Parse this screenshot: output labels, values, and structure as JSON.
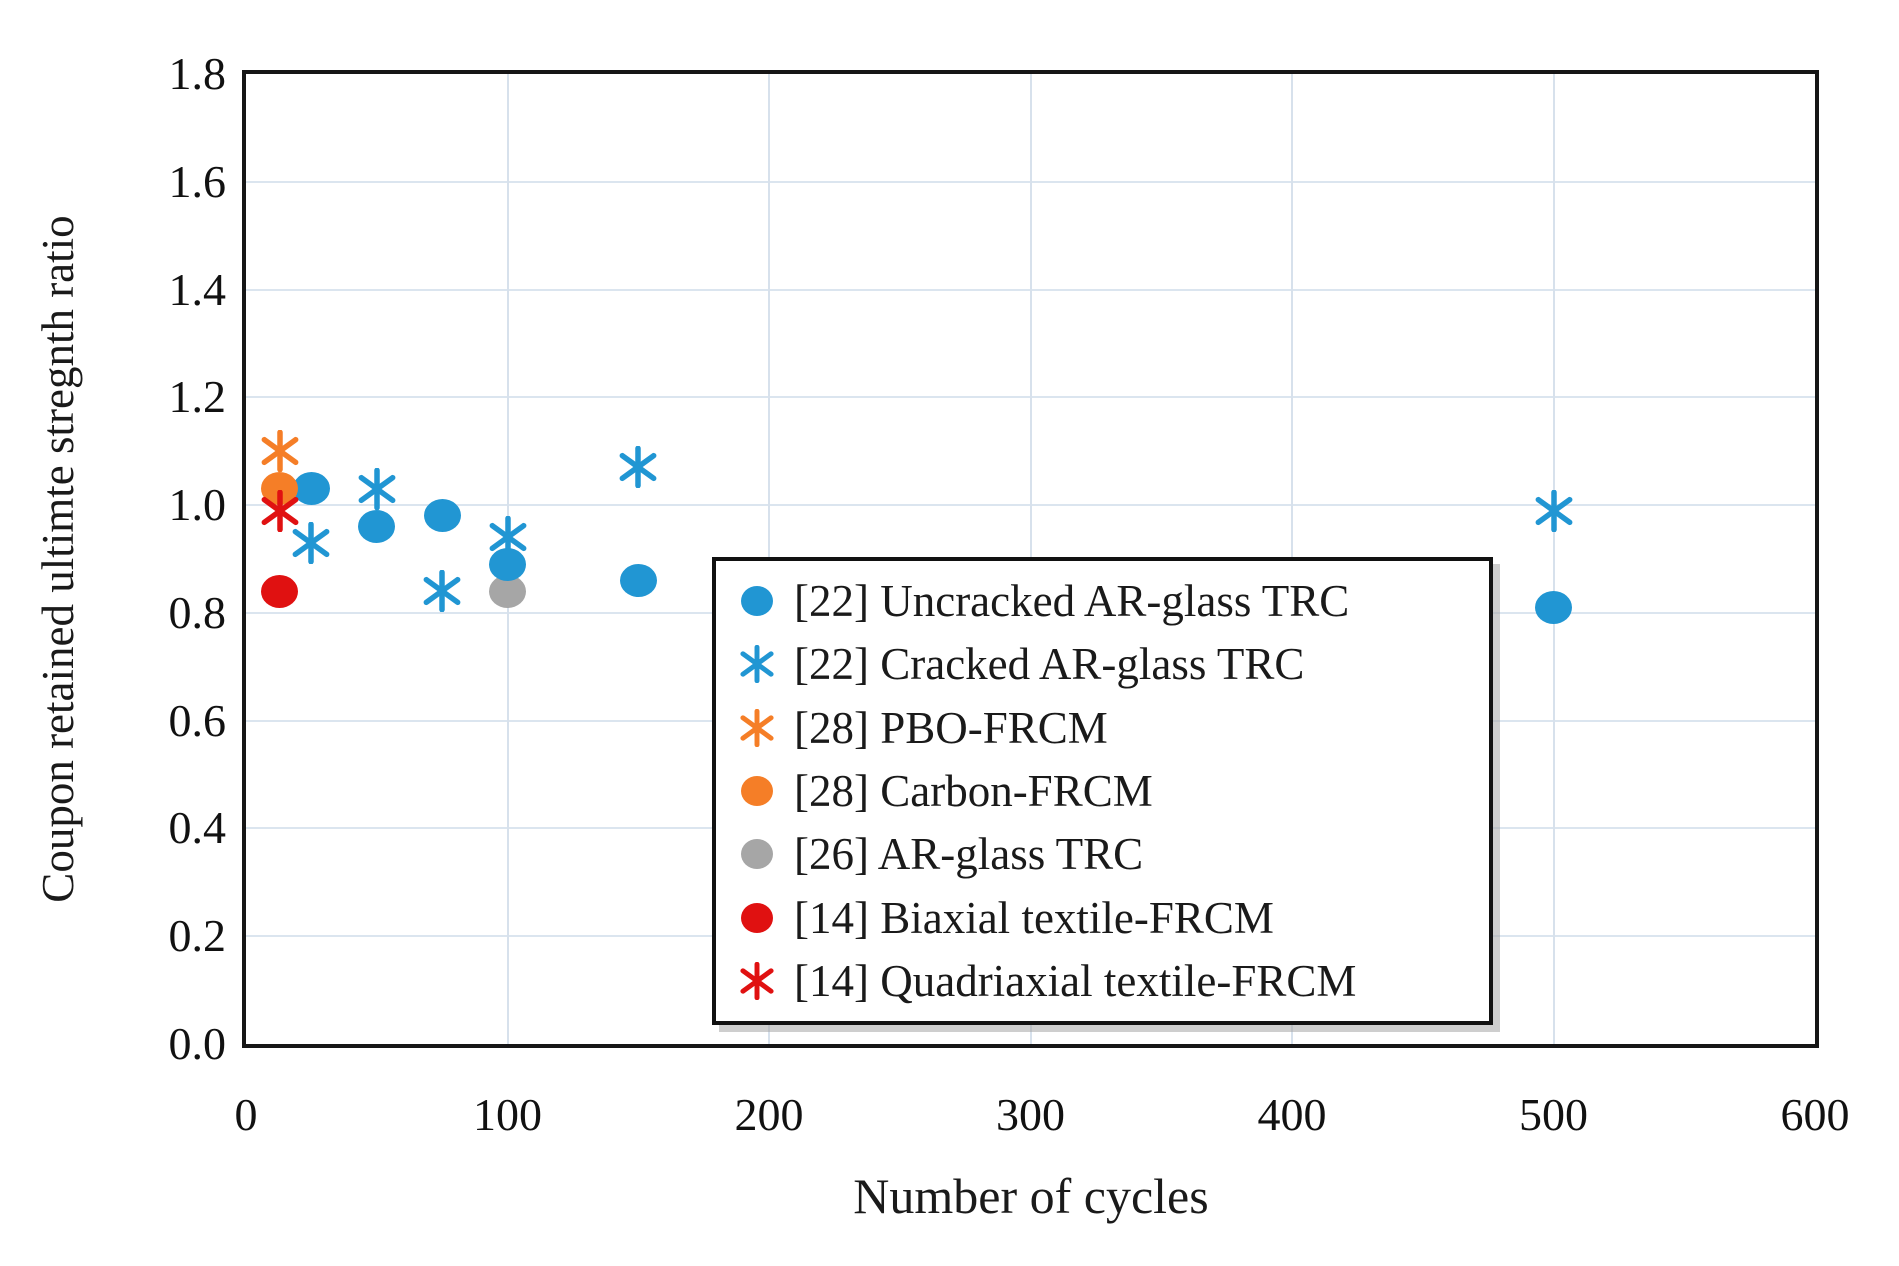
{
  "chart_data": {
    "type": "scatter",
    "title": "",
    "xlabel": "Number of cycles",
    "ylabel": "Coupon retained ultimte stregnth ratio",
    "xlim": [
      0,
      600
    ],
    "ylim": [
      0,
      1.8
    ],
    "x_tick_values": [
      0,
      100,
      200,
      300,
      400,
      500,
      600
    ],
    "x_tick_labels": [
      "0",
      "100",
      "200",
      "300",
      "400",
      "500",
      "600"
    ],
    "y_tick_values": [
      0,
      0.2,
      0.4,
      0.6,
      0.8,
      1.0,
      1.2,
      1.4,
      1.6,
      1.8
    ],
    "y_tick_labels": [
      "0.0",
      "0.2",
      "0.4",
      "0.6",
      "0.8",
      "1.0",
      "1.2",
      "1.4",
      "1.6",
      "1.8"
    ],
    "grid": true,
    "gridline_color": "#dbe5ef",
    "legend_position": "inside-bottom-right",
    "series": [
      {
        "name": "[22] Uncracked AR-glass TRC",
        "marker": "circle",
        "color": "#2196D3",
        "points": [
          [
            25,
            1.03
          ],
          [
            50,
            0.96
          ],
          [
            75,
            0.98
          ],
          [
            100,
            0.89
          ],
          [
            150,
            0.86
          ],
          [
            500,
            0.81
          ]
        ]
      },
      {
        "name": "[22] Cracked AR-glass TRC",
        "marker": "asterisk",
        "color": "#2196D3",
        "points": [
          [
            25,
            0.93
          ],
          [
            50,
            1.03
          ],
          [
            75,
            0.84
          ],
          [
            100,
            0.94
          ],
          [
            150,
            1.07
          ],
          [
            500,
            0.99
          ]
        ]
      },
      {
        "name": "[28] PBO-FRCM",
        "marker": "asterisk",
        "color": "#F57E27",
        "points": [
          [
            13,
            1.1
          ]
        ]
      },
      {
        "name": "[28] Carbon-FRCM",
        "marker": "circle",
        "color": "#F57E27",
        "points": [
          [
            13,
            1.03
          ]
        ]
      },
      {
        "name": "[26] AR-glass TRC",
        "marker": "circle",
        "color": "#A6A6A6",
        "points": [
          [
            100,
            0.84
          ]
        ]
      },
      {
        "name": "[14] Biaxial textile-FRCM",
        "marker": "circle",
        "color": "#E01111",
        "points": [
          [
            13,
            0.84
          ]
        ]
      },
      {
        "name": "[14] Quadriaxial textile-FRCM",
        "marker": "asterisk",
        "color": "#E01111",
        "points": [
          [
            13,
            0.99
          ]
        ]
      }
    ]
  }
}
